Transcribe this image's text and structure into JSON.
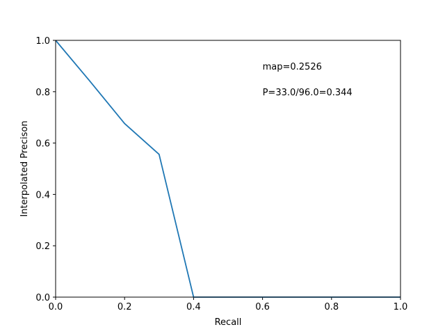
{
  "chart_data": {
    "type": "line",
    "xlabel": "Recall",
    "ylabel": "Interpolated Precison",
    "xlim": [
      0.0,
      1.0
    ],
    "ylim": [
      0.0,
      1.0
    ],
    "x_ticks": [
      "0.0",
      "0.2",
      "0.4",
      "0.6",
      "0.8",
      "1.0"
    ],
    "y_ticks": [
      "0.0",
      "0.2",
      "0.4",
      "0.6",
      "0.8",
      "1.0"
    ],
    "grid": false,
    "series": [
      {
        "color": "#1f77b4",
        "x": [
          0.0,
          0.1,
          0.2,
          0.3,
          0.4,
          0.5,
          0.6,
          0.7,
          0.8,
          0.9,
          1.0
        ],
        "y": [
          1.0,
          0.84,
          0.676,
          0.556,
          0.0,
          0.0,
          0.0,
          0.0,
          0.0,
          0.0,
          0.0
        ]
      }
    ],
    "annotations": [
      {
        "text": "map=0.2526",
        "x": 0.6,
        "y": 0.9
      },
      {
        "text": "P=33.0/96.0=0.344",
        "x": 0.6,
        "y": 0.8
      }
    ]
  }
}
